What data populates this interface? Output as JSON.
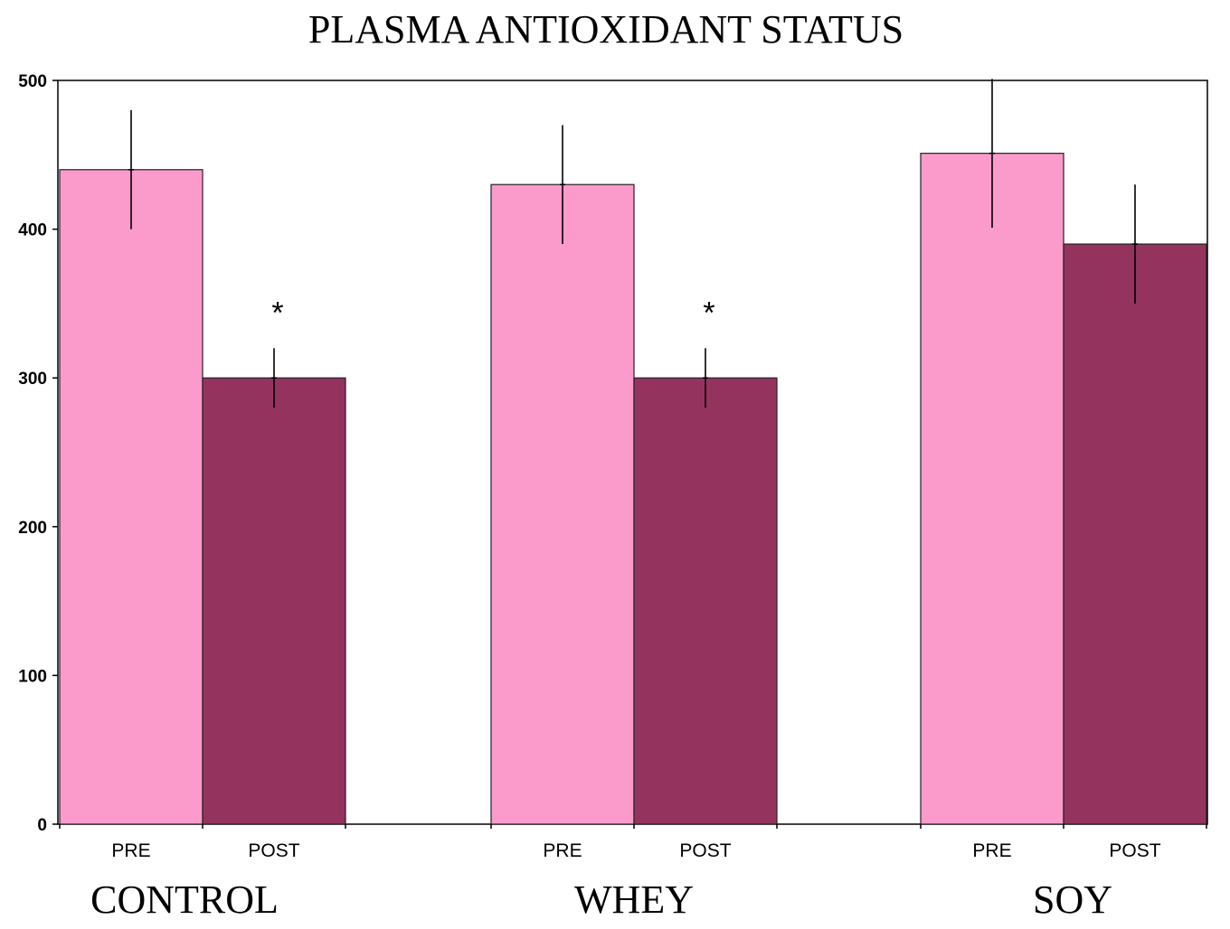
{
  "chart_data": {
    "type": "bar",
    "title": "PLASMA ANTIOXIDANT STATUS",
    "xlabel": "",
    "ylabel": "",
    "ylim": [
      0,
      500
    ],
    "yticks": [
      "0",
      "100",
      "200",
      "300",
      "400",
      "500"
    ],
    "grid": false,
    "legend": "none",
    "groups": [
      {
        "name": "CONTROL",
        "bars": [
          {
            "label": "PRE",
            "value": 440,
            "error": 40,
            "significance": ""
          },
          {
            "label": "POST",
            "value": 300,
            "error": 20,
            "significance": "*"
          }
        ]
      },
      {
        "name": "WHEY",
        "bars": [
          {
            "label": "PRE",
            "value": 430,
            "error": 40,
            "significance": ""
          },
          {
            "label": "POST",
            "value": 300,
            "error": 20,
            "significance": "*"
          }
        ]
      },
      {
        "name": "SOY",
        "bars": [
          {
            "label": "PRE",
            "value": 451,
            "error": 50,
            "significance": ""
          },
          {
            "label": "POST",
            "value": 390,
            "error": 40,
            "significance": ""
          }
        ]
      }
    ],
    "colors": {
      "PRE": "#fa9bcb",
      "POST": "#95335f"
    }
  }
}
